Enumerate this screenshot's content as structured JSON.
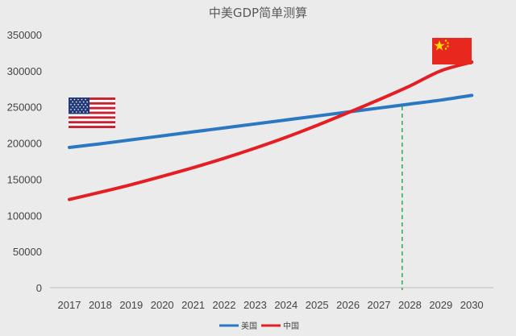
{
  "chart_data": {
    "type": "line",
    "title": "中美GDP简单测算",
    "xlabel": "",
    "ylabel": "",
    "categories": [
      "2017",
      "2018",
      "2019",
      "2020",
      "2021",
      "2022",
      "2023",
      "2024",
      "2025",
      "2026",
      "2027",
      "2028",
      "2029",
      "2030"
    ],
    "y_ticks": [
      "0",
      "50000",
      "100000",
      "150000",
      "200000",
      "250000",
      "300000",
      "350000"
    ],
    "ylim": [
      0,
      350000
    ],
    "grid": false,
    "legend_position": "bottom",
    "series": [
      {
        "name": "美国",
        "color": "#2a78c2",
        "values": [
          194000,
          199000,
          204500,
          210000,
          215500,
          221000,
          226500,
          232000,
          237500,
          243000,
          248500,
          254000,
          259500,
          266000
        ]
      },
      {
        "name": "中国",
        "color": "#e41e23",
        "values": [
          122000,
          132000,
          142500,
          154000,
          166000,
          179000,
          193000,
          208000,
          224500,
          242000,
          260000,
          279000,
          300000,
          312000
        ]
      }
    ],
    "annotations": [
      {
        "type": "vertical-dashed-line",
        "x": 2027.75,
        "color": "#33b34a"
      }
    ],
    "images": [
      {
        "name": "us-flag",
        "near_series": "美国"
      },
      {
        "name": "cn-flag",
        "near_series": "中国"
      }
    ]
  }
}
